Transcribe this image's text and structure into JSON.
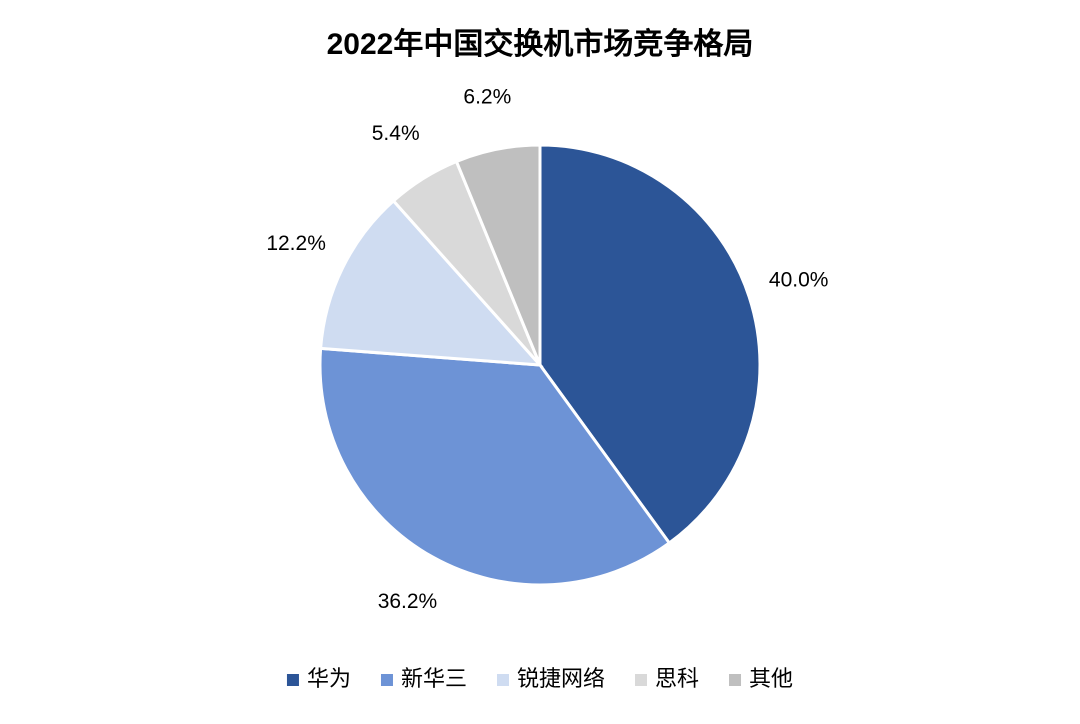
{
  "chart_data": {
    "type": "pie",
    "title": "2022年中国交换机市场竞争格局",
    "categories": [
      "华为",
      "新华三",
      "锐捷网络",
      "思科",
      "其他"
    ],
    "values": [
      40.0,
      36.2,
      12.2,
      5.4,
      6.2
    ],
    "value_labels": [
      "40.0%",
      "36.2%",
      "12.2%",
      "5.4%",
      "6.2%"
    ],
    "colors": [
      "#2c5597",
      "#6d93d6",
      "#cfdcf1",
      "#d9d9d9",
      "#bfbfbf"
    ],
    "legend": "bottom"
  }
}
